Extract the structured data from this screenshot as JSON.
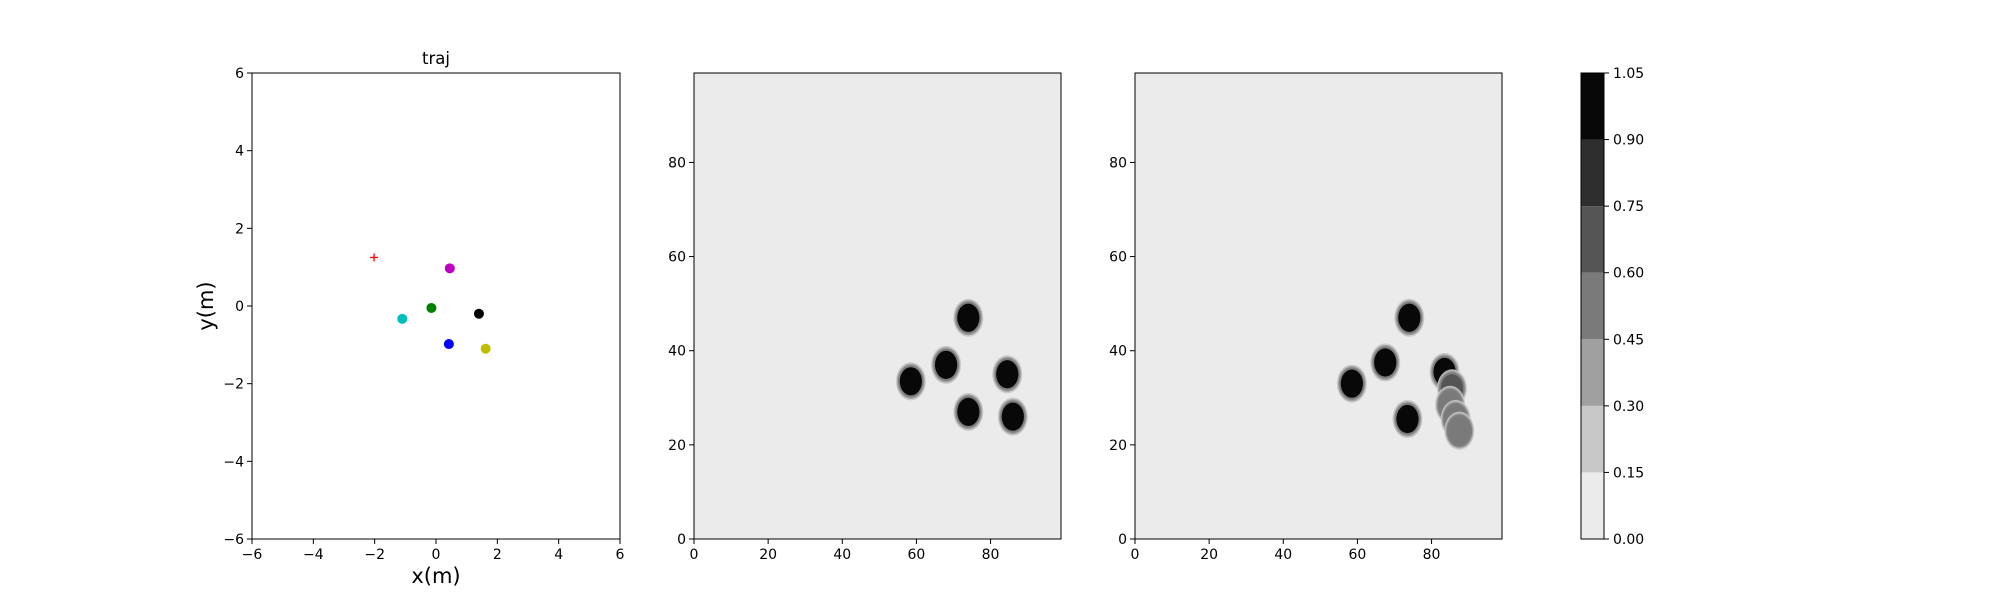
{
  "chart_data": [
    {
      "type": "scatter",
      "title": "traj",
      "xlabel": "x(m)",
      "ylabel": "y(m)",
      "xlim": [
        -6,
        6
      ],
      "ylim": [
        -6,
        6
      ],
      "xticks": [
        -6,
        -4,
        -2,
        0,
        2,
        4,
        6
      ],
      "yticks": [
        -6,
        -4,
        -2,
        0,
        2,
        4,
        6
      ],
      "grid": false,
      "points": [
        {
          "x": 0.45,
          "y": 0.97,
          "color": "#bf00bf",
          "marker": "circle"
        },
        {
          "x": -0.15,
          "y": -0.05,
          "color": "#008000",
          "marker": "circle"
        },
        {
          "x": 1.4,
          "y": -0.2,
          "color": "#000000",
          "marker": "circle"
        },
        {
          "x": -1.1,
          "y": -0.33,
          "color": "#00bfbf",
          "marker": "circle"
        },
        {
          "x": 0.42,
          "y": -0.98,
          "color": "#0000ff",
          "marker": "circle"
        },
        {
          "x": 1.62,
          "y": -1.1,
          "color": "#bfbf00",
          "marker": "circle"
        },
        {
          "x": -2.02,
          "y": 1.25,
          "color": "#ff0000",
          "marker": "plus"
        }
      ]
    },
    {
      "type": "heatmap",
      "title": "",
      "xlim": [
        0,
        99
      ],
      "ylim": [
        0,
        99
      ],
      "xticks": [
        0,
        20,
        40,
        60,
        80
      ],
      "yticks": [
        0,
        20,
        40,
        60,
        80
      ],
      "background_level": 0.07,
      "blobs": [
        {
          "x": 74,
          "y": 47,
          "level": 1.0
        },
        {
          "x": 68,
          "y": 37,
          "level": 1.0
        },
        {
          "x": 58.5,
          "y": 33.5,
          "level": 1.0
        },
        {
          "x": 84.5,
          "y": 35,
          "level": 1.0
        },
        {
          "x": 74,
          "y": 27,
          "level": 1.0
        },
        {
          "x": 86,
          "y": 26,
          "level": 1.0
        }
      ]
    },
    {
      "type": "heatmap",
      "title": "",
      "xlim": [
        0,
        99
      ],
      "ylim": [
        0,
        99
      ],
      "xticks": [
        0,
        20,
        40,
        60,
        80
      ],
      "yticks": [
        0,
        20,
        40,
        60,
        80
      ],
      "background_level": 0.07,
      "blobs": [
        {
          "x": 74,
          "y": 47,
          "level": 1.0
        },
        {
          "x": 67.5,
          "y": 37.5,
          "level": 1.0
        },
        {
          "x": 58.5,
          "y": 33,
          "level": 1.0
        },
        {
          "x": 73.5,
          "y": 25.5,
          "level": 1.0
        },
        {
          "x": 83.5,
          "y": 35.5,
          "level": 1.0
        },
        {
          "x": 85.5,
          "y": 32,
          "level": 0.6
        },
        {
          "x": 85,
          "y": 28.5,
          "level": 0.5
        },
        {
          "x": 86.5,
          "y": 25.5,
          "level": 0.45
        },
        {
          "x": 87.5,
          "y": 23,
          "level": 0.55
        }
      ]
    },
    {
      "type": "colorbar",
      "levels": [
        0.0,
        0.15,
        0.3,
        0.45,
        0.6,
        0.75,
        0.9,
        1.05
      ],
      "tick_labels": [
        "0.00",
        "0.15",
        "0.30",
        "0.45",
        "0.60",
        "0.75",
        "0.90",
        "1.05"
      ],
      "colors": [
        "#ebebeb",
        "#c8c8c8",
        "#a0a0a0",
        "#7a7a7a",
        "#555555",
        "#2e2e2e",
        "#080808"
      ]
    }
  ]
}
